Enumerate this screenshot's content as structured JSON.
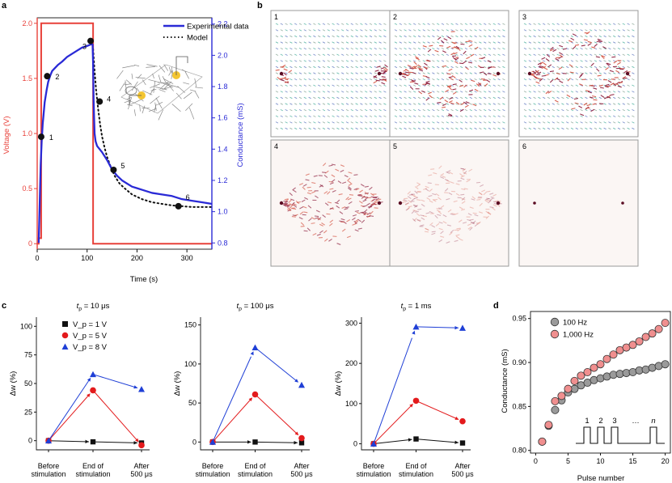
{
  "panel_labels": {
    "a": "a",
    "b": "b",
    "c": "c",
    "d": "d"
  },
  "chart_data": [
    {
      "panel": "a",
      "type": "line",
      "xlabel": "Time (s)",
      "ylabel_left": "Voltage (V)",
      "ylabel_right": "Conductance (mS)",
      "xlim": [
        0,
        350
      ],
      "ylim_left": [
        -0.05,
        2.05
      ],
      "ylim_right": [
        0.76,
        2.24
      ],
      "xticks": [
        0,
        100,
        200,
        300
      ],
      "yticks_left": [
        0,
        0.5,
        1.0,
        1.5,
        2.0
      ],
      "yticks_left_labels": [
        "0",
        "0.5",
        "1.0",
        "1.5",
        "2.0"
      ],
      "yticks_right": [
        0.8,
        1.0,
        1.2,
        1.4,
        1.6,
        1.8,
        2.0,
        2.2
      ],
      "yticks_right_labels": [
        "0.8",
        "1.0",
        "1.2",
        "1.4",
        "1.6",
        "1.8",
        "2.0",
        "2.2"
      ],
      "legend": [
        "Experimental data",
        "Model"
      ],
      "colors": {
        "voltage": "#e8413a",
        "experimental": "#2a2ad6",
        "model": "#111111"
      },
      "voltage": {
        "x": [
          0,
          3,
          3,
          8,
          8,
          112,
          112,
          350
        ],
        "y": [
          0,
          0,
          0.05,
          0.05,
          2.0,
          2.0,
          0,
          0
        ]
      },
      "experimental": {
        "x": [
          3,
          5,
          7,
          9,
          11,
          13,
          15,
          17,
          19,
          22,
          26,
          30,
          36,
          42,
          50,
          60,
          70,
          80,
          90,
          100,
          108,
          111,
          112,
          113,
          114,
          115,
          117,
          120,
          125,
          130,
          140,
          150,
          160,
          170,
          180,
          190,
          200,
          210,
          230,
          250,
          270,
          290,
          310,
          330,
          350
        ],
        "y": [
          0.8,
          1.05,
          1.3,
          1.45,
          1.56,
          1.63,
          1.7,
          1.74,
          1.78,
          1.83,
          1.87,
          1.9,
          1.92,
          1.94,
          1.96,
          1.99,
          2.01,
          2.03,
          2.05,
          2.06,
          2.07,
          2.07,
          1.95,
          1.72,
          1.6,
          1.5,
          1.45,
          1.42,
          1.4,
          1.38,
          1.33,
          1.27,
          1.23,
          1.2,
          1.18,
          1.16,
          1.15,
          1.14,
          1.12,
          1.11,
          1.1,
          1.08,
          1.07,
          1.06,
          1.05
        ]
      },
      "model": {
        "x": [
          112,
          115,
          118,
          122,
          126,
          130,
          135,
          140,
          147,
          155,
          165,
          175,
          190,
          210,
          230,
          250,
          270,
          290,
          310,
          330,
          350
        ],
        "y": [
          2.04,
          1.9,
          1.78,
          1.66,
          1.56,
          1.48,
          1.41,
          1.35,
          1.29,
          1.23,
          1.18,
          1.15,
          1.11,
          1.08,
          1.06,
          1.05,
          1.04,
          1.035,
          1.03,
          1.03,
          1.03
        ]
      },
      "markers": [
        {
          "label": "1",
          "x": 8,
          "v": 0.97
        },
        {
          "label": "2",
          "x": 20,
          "v": 1.52
        },
        {
          "label": "3",
          "x": 107,
          "v": 1.84
        },
        {
          "label": "4",
          "x": 125,
          "v": 1.29
        },
        {
          "label": "5",
          "x": 153,
          "v": 0.67
        },
        {
          "label": "6",
          "x": 283,
          "v": 0.34
        }
      ]
    },
    {
      "panel": "b",
      "type": "heatmap",
      "cells": [
        {
          "label": "1",
          "style": "grid",
          "spread": 0.0
        },
        {
          "label": "2",
          "style": "grid",
          "spread": 0.55
        },
        {
          "label": "3",
          "style": "grid",
          "spread": 1.0
        },
        {
          "label": "4",
          "style": "fade",
          "spread": 1.0
        },
        {
          "label": "5",
          "style": "fade",
          "spread": 0.5
        },
        {
          "label": "6",
          "style": "dots",
          "spread": 0.0
        }
      ]
    },
    {
      "panel": "c",
      "type": "line",
      "ylabel": "Δw (%)",
      "categories": [
        "Before\nstimulation",
        "End of\nstimulation",
        "After\n500 μs"
      ],
      "legend": {
        "v1": "V_p = 1 V",
        "v5": "V_p = 5 V",
        "v8": "V_p = 8 V"
      },
      "colors": {
        "v1": "#111111",
        "v5": "#e31a1c",
        "v8": "#1f3fd6"
      },
      "subplots": [
        {
          "title": "t_p = 10 μs",
          "yticks": [
            0,
            25,
            50,
            75,
            100
          ],
          "ylim": [
            -8,
            108
          ],
          "v1": [
            0,
            -1,
            -2
          ],
          "v5": [
            0,
            44,
            -4
          ],
          "v8": [
            0,
            58,
            45
          ]
        },
        {
          "title": "t_p = 100 μs",
          "yticks": [
            0,
            50,
            100,
            150
          ],
          "ylim": [
            -10,
            160
          ],
          "v1": [
            0,
            0,
            -1
          ],
          "v5": [
            0,
            61,
            5
          ],
          "v8": [
            0,
            121,
            73
          ]
        },
        {
          "title": "t_p = 1 ms",
          "yticks": [
            0,
            100,
            200,
            300
          ],
          "ylim": [
            -15,
            315
          ],
          "v1": [
            0,
            12,
            2
          ],
          "v5": [
            0,
            107,
            56
          ],
          "v8": [
            0,
            291,
            288
          ]
        }
      ]
    },
    {
      "panel": "d",
      "type": "scatter",
      "xlabel": "Pulse number",
      "ylabel": "Conductance (mS)",
      "xlim": [
        -0.8,
        20.8
      ],
      "ylim": [
        0.797,
        0.958
      ],
      "xticks": [
        0,
        5,
        10,
        15,
        20
      ],
      "yticks": [
        0.8,
        0.85,
        0.9,
        0.95
      ],
      "yticks_labels": [
        "0.80",
        "0.85",
        "0.90",
        "0.95"
      ],
      "inset_labels": [
        "1",
        "2",
        "3",
        "…",
        "n"
      ],
      "series": [
        {
          "name": "100 Hz",
          "color": "#9a9a9a",
          "x": [
            1,
            2,
            3,
            4,
            5,
            6,
            7,
            8,
            9,
            10,
            11,
            12,
            13,
            14,
            15,
            16,
            17,
            18,
            19,
            20
          ],
          "y": [
            0.81,
            0.828,
            0.846,
            0.857,
            0.866,
            0.87,
            0.874,
            0.877,
            0.88,
            0.882,
            0.884,
            0.886,
            0.887,
            0.888,
            0.889,
            0.891,
            0.892,
            0.894,
            0.896,
            0.898
          ]
        },
        {
          "name": "1,000 Hz",
          "color": "#f08f8f",
          "x": [
            1,
            2,
            3,
            4,
            5,
            6,
            7,
            8,
            9,
            10,
            11,
            12,
            13,
            14,
            15,
            16,
            17,
            18,
            19,
            20
          ],
          "y": [
            0.81,
            0.829,
            0.856,
            0.862,
            0.87,
            0.879,
            0.885,
            0.889,
            0.894,
            0.898,
            0.904,
            0.909,
            0.914,
            0.917,
            0.92,
            0.924,
            0.929,
            0.933,
            0.938,
            0.945
          ]
        }
      ]
    }
  ]
}
